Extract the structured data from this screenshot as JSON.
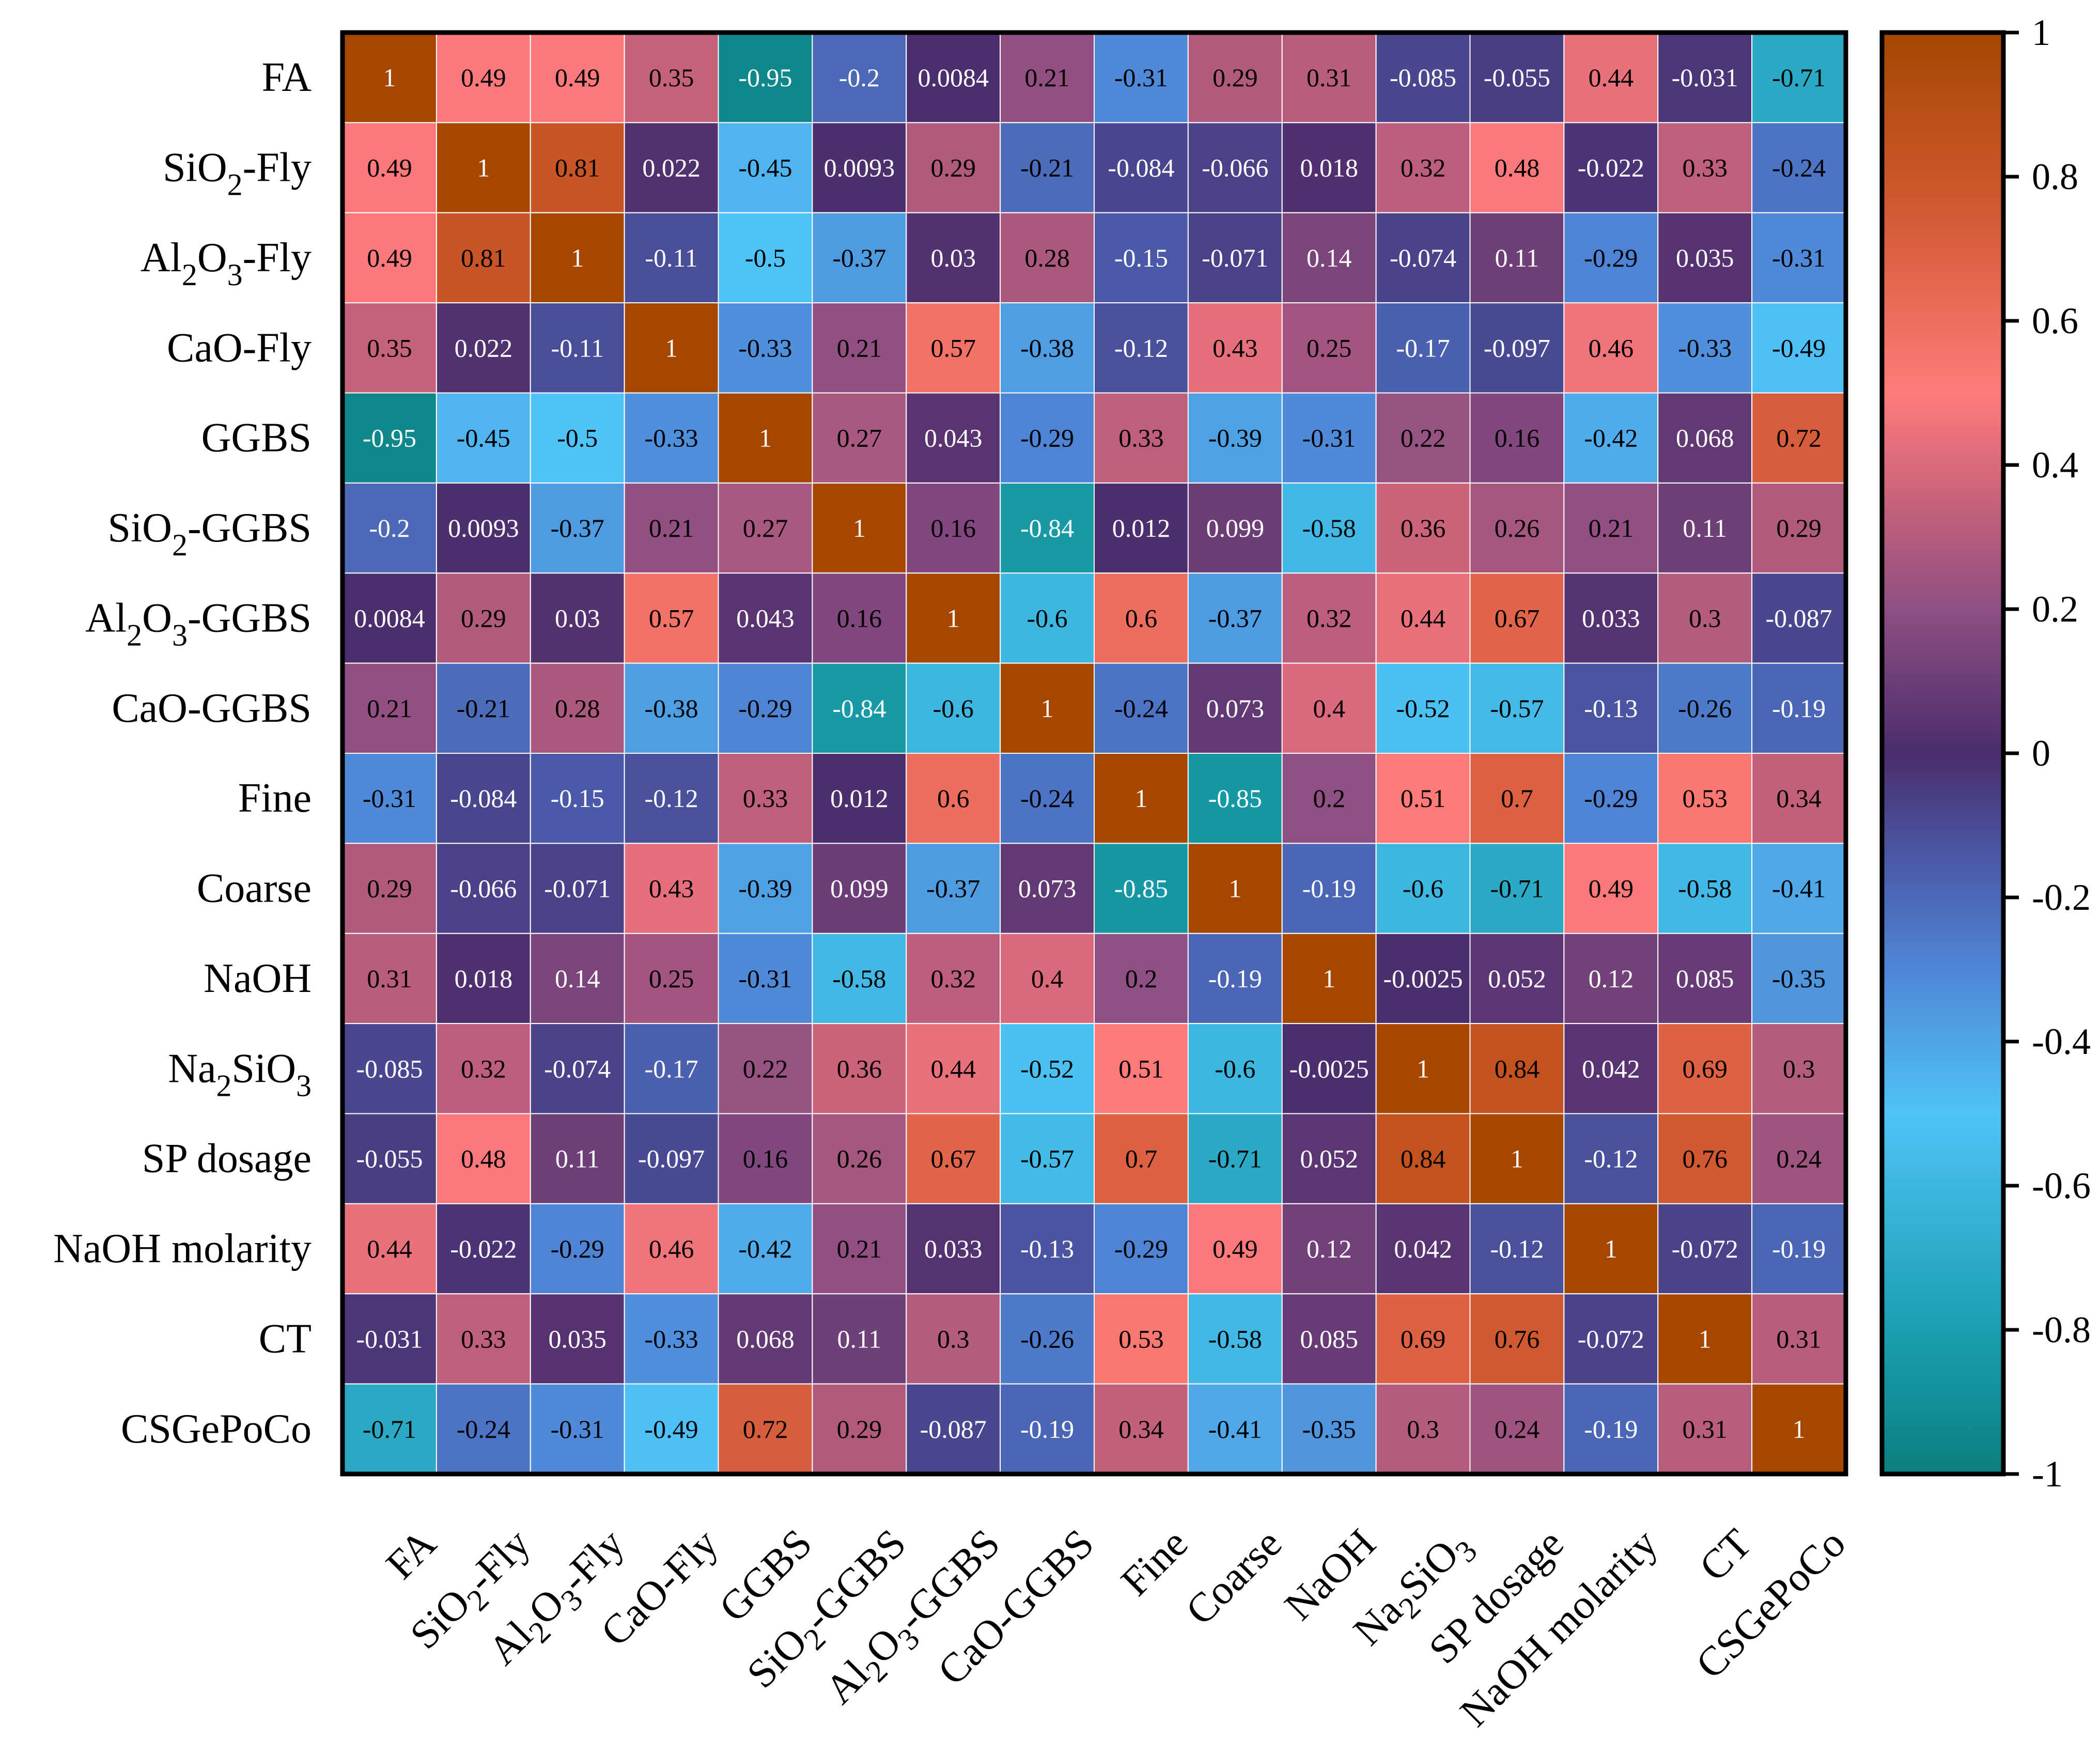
{
  "chart_data": {
    "type": "heatmap",
    "title": "",
    "xlabel": "",
    "ylabel": "",
    "variables": [
      {
        "base": "FA",
        "sub1": "",
        "mid": "",
        "sub2": "",
        "rest": ""
      },
      {
        "base": "SiO",
        "sub1": "2",
        "mid": "",
        "sub2": "",
        "rest": "-Fly"
      },
      {
        "base": "Al",
        "sub1": "2",
        "mid": "O",
        "sub2": "3",
        "rest": "-Fly"
      },
      {
        "base": "CaO-Fly",
        "sub1": "",
        "mid": "",
        "sub2": "",
        "rest": ""
      },
      {
        "base": "GGBS",
        "sub1": "",
        "mid": "",
        "sub2": "",
        "rest": ""
      },
      {
        "base": "SiO",
        "sub1": "2",
        "mid": "",
        "sub2": "",
        "rest": "-GGBS"
      },
      {
        "base": "Al",
        "sub1": "2",
        "mid": "O",
        "sub2": "3",
        "rest": "-GGBS"
      },
      {
        "base": "CaO-GGBS",
        "sub1": "",
        "mid": "",
        "sub2": "",
        "rest": ""
      },
      {
        "base": "Fine",
        "sub1": "",
        "mid": "",
        "sub2": "",
        "rest": ""
      },
      {
        "base": "Coarse",
        "sub1": "",
        "mid": "",
        "sub2": "",
        "rest": ""
      },
      {
        "base": "NaOH",
        "sub1": "",
        "mid": "",
        "sub2": "",
        "rest": ""
      },
      {
        "base": "Na",
        "sub1": "2",
        "mid": "SiO",
        "sub2": "3",
        "rest": ""
      },
      {
        "base": "SP dosage",
        "sub1": "",
        "mid": "",
        "sub2": "",
        "rest": ""
      },
      {
        "base": "NaOH molarity",
        "sub1": "",
        "mid": "",
        "sub2": "",
        "rest": ""
      },
      {
        "base": "CT",
        "sub1": "",
        "mid": "",
        "sub2": "",
        "rest": ""
      },
      {
        "base": "CSGePoCo",
        "sub1": "",
        "mid": "",
        "sub2": "",
        "rest": ""
      }
    ],
    "matrix": [
      [
        "1",
        "0.49",
        "0.49",
        "0.35",
        "-0.95",
        "-0.2",
        "0.0084",
        "0.21",
        "-0.31",
        "0.29",
        "0.31",
        "-0.085",
        "-0.055",
        "0.44",
        "-0.031",
        "-0.71"
      ],
      [
        "0.49",
        "1",
        "0.81",
        "0.022",
        "-0.45",
        "0.0093",
        "0.29",
        "-0.21",
        "-0.084",
        "-0.066",
        "0.018",
        "0.32",
        "0.48",
        "-0.022",
        "0.33",
        "-0.24"
      ],
      [
        "0.49",
        "0.81",
        "1",
        "-0.11",
        "-0.5",
        "-0.37",
        "0.03",
        "0.28",
        "-0.15",
        "-0.071",
        "0.14",
        "-0.074",
        "0.11",
        "-0.29",
        "0.035",
        "-0.31"
      ],
      [
        "0.35",
        "0.022",
        "-0.11",
        "1",
        "-0.33",
        "0.21",
        "0.57",
        "-0.38",
        "-0.12",
        "0.43",
        "0.25",
        "-0.17",
        "-0.097",
        "0.46",
        "-0.33",
        "-0.49"
      ],
      [
        "-0.95",
        "-0.45",
        "-0.5",
        "-0.33",
        "1",
        "0.27",
        "0.043",
        "-0.29",
        "0.33",
        "-0.39",
        "-0.31",
        "0.22",
        "0.16",
        "-0.42",
        "0.068",
        "0.72"
      ],
      [
        "-0.2",
        "0.0093",
        "-0.37",
        "0.21",
        "0.27",
        "1",
        "0.16",
        "-0.84",
        "0.012",
        "0.099",
        "-0.58",
        "0.36",
        "0.26",
        "0.21",
        "0.11",
        "0.29"
      ],
      [
        "0.0084",
        "0.29",
        "0.03",
        "0.57",
        "0.043",
        "0.16",
        "1",
        "-0.6",
        "0.6",
        "-0.37",
        "0.32",
        "0.44",
        "0.67",
        "0.033",
        "0.3",
        "-0.087"
      ],
      [
        "0.21",
        "-0.21",
        "0.28",
        "-0.38",
        "-0.29",
        "-0.84",
        "-0.6",
        "1",
        "-0.24",
        "0.073",
        "0.4",
        "-0.52",
        "-0.57",
        "-0.13",
        "-0.26",
        "-0.19"
      ],
      [
        "-0.31",
        "-0.084",
        "-0.15",
        "-0.12",
        "0.33",
        "0.012",
        "0.6",
        "-0.24",
        "1",
        "-0.85",
        "0.2",
        "0.51",
        "0.7",
        "-0.29",
        "0.53",
        "0.34"
      ],
      [
        "0.29",
        "-0.066",
        "-0.071",
        "0.43",
        "-0.39",
        "0.099",
        "-0.37",
        "0.073",
        "-0.85",
        "1",
        "-0.19",
        "-0.6",
        "-0.71",
        "0.49",
        "-0.58",
        "-0.41"
      ],
      [
        "0.31",
        "0.018",
        "0.14",
        "0.25",
        "-0.31",
        "-0.58",
        "0.32",
        "0.4",
        "0.2",
        "-0.19",
        "1",
        "-0.0025",
        "0.052",
        "0.12",
        "0.085",
        "-0.35"
      ],
      [
        "-0.085",
        "0.32",
        "-0.074",
        "-0.17",
        "0.22",
        "0.36",
        "0.44",
        "-0.52",
        "0.51",
        "-0.6",
        "-0.0025",
        "1",
        "0.84",
        "0.042",
        "0.69",
        "0.3"
      ],
      [
        "-0.055",
        "0.48",
        "0.11",
        "-0.097",
        "0.16",
        "0.26",
        "0.67",
        "-0.57",
        "0.7",
        "-0.71",
        "0.052",
        "0.84",
        "1",
        "-0.12",
        "0.76",
        "0.24"
      ],
      [
        "0.44",
        "-0.022",
        "-0.29",
        "0.46",
        "-0.42",
        "0.21",
        "0.033",
        "-0.13",
        "-0.29",
        "0.49",
        "0.12",
        "0.042",
        "-0.12",
        "1",
        "-0.072",
        "-0.19"
      ],
      [
        "-0.031",
        "0.33",
        "0.035",
        "-0.33",
        "0.068",
        "0.11",
        "0.3",
        "-0.26",
        "0.53",
        "-0.58",
        "0.085",
        "0.69",
        "0.76",
        "-0.072",
        "1",
        "0.31"
      ],
      [
        "-0.71",
        "-0.24",
        "-0.31",
        "-0.49",
        "0.72",
        "0.29",
        "-0.087",
        "-0.19",
        "0.34",
        "-0.41",
        "-0.35",
        "0.3",
        "0.24",
        "-0.19",
        "0.31",
        "1"
      ]
    ],
    "value_range": [
      -1,
      1
    ],
    "colorbar": {
      "ticks": [
        1,
        0.8,
        0.6,
        0.4,
        0.2,
        0,
        -0.2,
        -0.4,
        -0.6,
        -0.8,
        -1
      ],
      "tick_labels": [
        "1",
        "0.8",
        "0.6",
        "0.4",
        "0.2",
        "0",
        "-0.2",
        "-0.4",
        "-0.6",
        "-0.8",
        "-1"
      ],
      "stops": [
        {
          "v": -1.0,
          "color": "#0b7f7f"
        },
        {
          "v": -0.8,
          "color": "#1a9fb0"
        },
        {
          "v": -0.5,
          "color": "#4fc3f7"
        },
        {
          "v": -0.3,
          "color": "#4f86d6"
        },
        {
          "v": -0.15,
          "color": "#4a5aa8"
        },
        {
          "v": 0.0,
          "color": "#4a2d6c"
        },
        {
          "v": 0.2,
          "color": "#8e4f82"
        },
        {
          "v": 0.35,
          "color": "#c7627b"
        },
        {
          "v": 0.5,
          "color": "#ff7b7b"
        },
        {
          "v": 0.75,
          "color": "#d25a33"
        },
        {
          "v": 1.0,
          "color": "#a54700"
        }
      ]
    }
  }
}
